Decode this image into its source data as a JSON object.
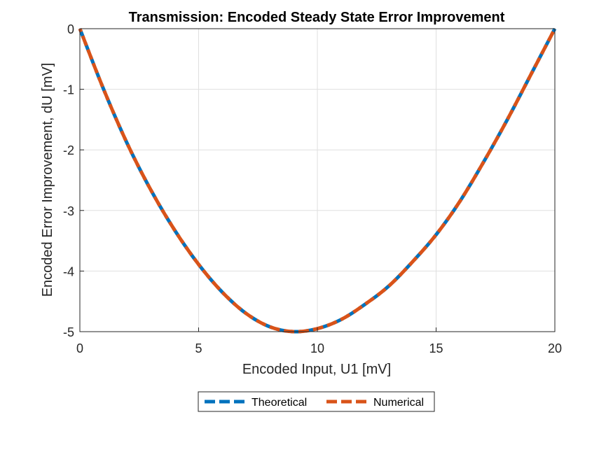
{
  "chart_data": {
    "type": "line",
    "title": "Transmission: Encoded Steady State Error Improvement",
    "xlabel": "Encoded Input, U1 [mV]",
    "ylabel": "Encoded Error Improvement, dU [mV]",
    "xlim": [
      0,
      20
    ],
    "ylim": [
      -5,
      0
    ],
    "xticks": [
      0,
      5,
      10,
      15,
      20
    ],
    "yticks": [
      0,
      -1,
      -2,
      -3,
      -4,
      -5
    ],
    "grid": true,
    "legend_position": "bottom-outside",
    "series": [
      {
        "name": "Theoretical",
        "color": "#0072BD",
        "style": "dashed",
        "x": [
          0,
          1,
          2,
          3,
          4,
          5,
          6,
          7,
          8,
          9,
          10,
          11,
          12,
          13,
          14,
          15,
          16,
          17,
          18,
          19,
          20
        ],
        "y": [
          0,
          -1.0,
          -1.9,
          -2.67,
          -3.33,
          -3.89,
          -4.35,
          -4.7,
          -4.92,
          -5.0,
          -4.95,
          -4.8,
          -4.55,
          -4.25,
          -3.85,
          -3.4,
          -2.85,
          -2.2,
          -1.5,
          -0.75,
          0
        ]
      },
      {
        "name": "Numerical",
        "color": "#D95319",
        "style": "dashed",
        "x": [
          0,
          1,
          2,
          3,
          4,
          5,
          6,
          7,
          8,
          9,
          10,
          11,
          12,
          13,
          14,
          15,
          16,
          17,
          18,
          19,
          20
        ],
        "y": [
          0,
          -1.0,
          -1.9,
          -2.67,
          -3.33,
          -3.89,
          -4.35,
          -4.7,
          -4.92,
          -5.0,
          -4.95,
          -4.8,
          -4.55,
          -4.25,
          -3.85,
          -3.4,
          -2.85,
          -2.2,
          -1.5,
          -0.75,
          0
        ]
      }
    ]
  }
}
